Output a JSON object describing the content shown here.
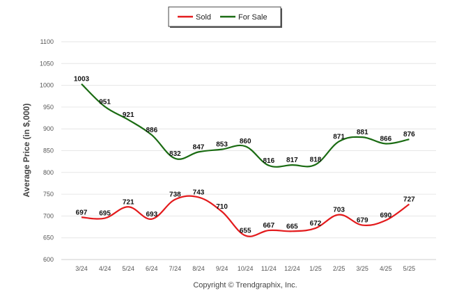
{
  "chart_data": {
    "type": "line",
    "categories": [
      "3/24",
      "4/24",
      "5/24",
      "6/24",
      "7/24",
      "8/24",
      "9/24",
      "10/24",
      "11/24",
      "12/24",
      "1/25",
      "2/25",
      "3/25",
      "4/25",
      "5/25"
    ],
    "series": [
      {
        "name": "Sold",
        "color": "#e31a1c",
        "values": [
          697,
          695,
          721,
          693,
          738,
          743,
          710,
          655,
          667,
          665,
          672,
          703,
          679,
          690,
          727
        ]
      },
      {
        "name": "For Sale",
        "color": "#1a6b12",
        "values": [
          1003,
          951,
          921,
          886,
          832,
          847,
          853,
          860,
          816,
          817,
          818,
          871,
          881,
          866,
          876
        ]
      }
    ],
    "ylabel": "Average Price (in $,000)",
    "xlabel": "",
    "ylim": [
      600,
      1100
    ],
    "yticks": [
      600,
      650,
      700,
      750,
      800,
      850,
      900,
      950,
      1000,
      1050,
      1100
    ],
    "grid": true,
    "legend_position": "top-center",
    "footer": "Copyright © Trendgraphix, Inc."
  }
}
